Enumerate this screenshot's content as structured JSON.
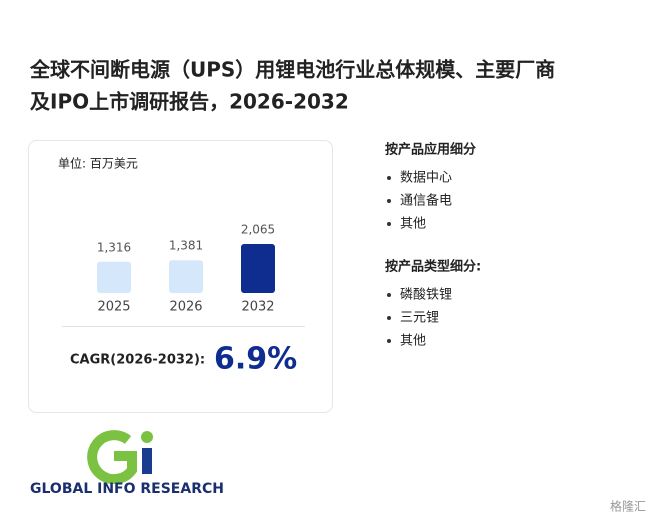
{
  "title": [
    "全球不间断电源（UPS）用锂电池行业总体规模、主要厂商",
    "及IPO上市调研报告，2026-2032"
  ],
  "chart_data": {
    "type": "bar",
    "unit": "单位: 百万美元",
    "categories": [
      "2025",
      "2026",
      "2032"
    ],
    "values": [
      1316,
      1381,
      2065
    ],
    "value_labels": [
      "1,316",
      "1,381",
      "2,065"
    ],
    "colors": [
      "#d5e7fb",
      "#d5e7fb",
      "#0e2d8e"
    ]
  },
  "cagr": {
    "label": "CAGR(2026-2032):",
    "value": "6.9%"
  },
  "segments": [
    {
      "heading": "按产品应用细分",
      "items": [
        "数据中心",
        "通信备电",
        "其他"
      ]
    },
    {
      "heading": "按产品类型细分:",
      "items": [
        "磷酸铁锂",
        "三元锂",
        "其他"
      ]
    }
  ],
  "logo": {
    "mark": "Gi",
    "name": "GLOBAL INFO RESEARCH"
  },
  "watermark": "格隆汇"
}
